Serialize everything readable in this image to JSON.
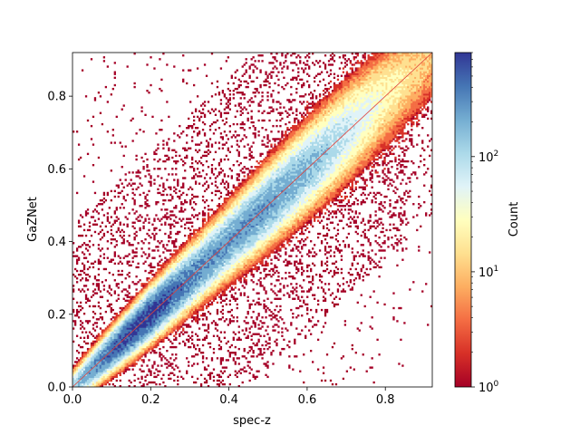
{
  "chart_data": {
    "type": "heatmap",
    "subtype": "2d-histogram",
    "xlabel": "spec-z",
    "ylabel": "GaZNet",
    "xlim": [
      0.0,
      0.92
    ],
    "ylim": [
      0.0,
      0.92
    ],
    "x_ticks": [
      "0.0",
      "0.2",
      "0.4",
      "0.6",
      "0.8"
    ],
    "y_ticks": [
      "0.0",
      "0.2",
      "0.4",
      "0.6",
      "0.8"
    ],
    "reference_line": {
      "x": [
        0.0,
        0.92
      ],
      "y": [
        0.0,
        0.92
      ],
      "color": "#e0413a"
    },
    "colorbar": {
      "label": "Count",
      "scale": "log",
      "range": [
        1,
        800
      ],
      "ticks": [
        "10^0",
        "10^1",
        "10^2"
      ],
      "colormap": "RdYlBu",
      "colors": [
        "#a50026",
        "#d73027",
        "#f46d43",
        "#fdae61",
        "#fee090",
        "#ffffbf",
        "#e0f3f8",
        "#abd9e9",
        "#74add1",
        "#4575b4",
        "#313695"
      ]
    },
    "grid": false,
    "density_description": "counts concentrated along the 1:1 line y = x; peak density around spec-z 0.1-0.3, with red low-count scatter spreading away from the diagonal"
  }
}
